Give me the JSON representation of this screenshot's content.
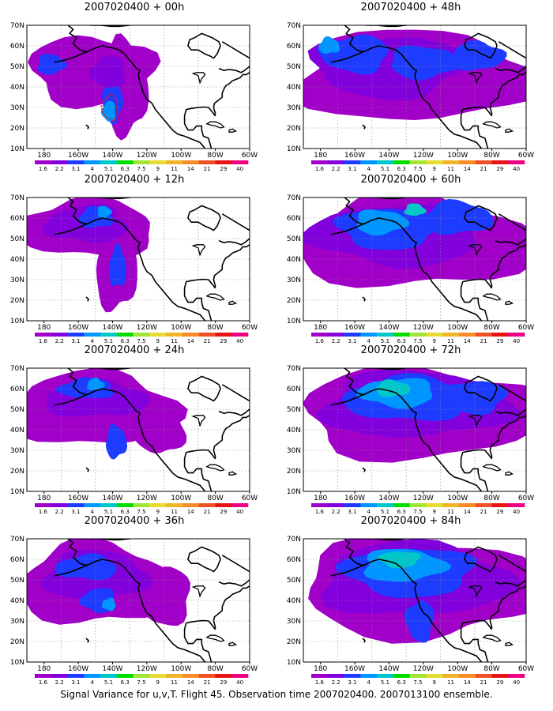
{
  "footer": "Signal Variance for u,v,T. Flight 45. Observation time 2007020400. 2007013100 ensemble.",
  "map_axes": {
    "lon_ticks": [
      "180",
      "160W",
      "140W",
      "120W",
      "100W",
      "80W",
      "60W"
    ],
    "lat_ticks": [
      "70N",
      "60N",
      "50N",
      "40N",
      "30N",
      "20N",
      "10N"
    ]
  },
  "colorbar": {
    "labels": [
      "1.6",
      "2.2",
      "3.1",
      "4",
      "5.1",
      "6.3",
      "7.5",
      "9",
      "11",
      "14",
      "21",
      "29",
      "40"
    ],
    "colors": [
      "#a000c8",
      "#8200dc",
      "#1e3cff",
      "#0096ff",
      "#00c8c8",
      "#00dc00",
      "#a0e632",
      "#e6dc32",
      "#f0b428",
      "#fa8c28",
      "#f05028",
      "#e61414",
      "#f00082"
    ]
  },
  "chart_data": [
    {
      "type": "heatmap",
      "title": "2007020400 + 00h",
      "lead_hours": 0,
      "max_class": 5,
      "notes": "target region marked near 30N 140W"
    },
    {
      "type": "heatmap",
      "title": "2007020400 + 48h",
      "lead_hours": 48,
      "max_class": 5
    },
    {
      "type": "heatmap",
      "title": "2007020400 + 12h",
      "lead_hours": 12,
      "max_class": 5
    },
    {
      "type": "heatmap",
      "title": "2007020400 + 60h",
      "lead_hours": 60,
      "max_class": 6
    },
    {
      "type": "heatmap",
      "title": "2007020400 + 24h",
      "lead_hours": 24,
      "max_class": 5
    },
    {
      "type": "heatmap",
      "title": "2007020400 + 72h",
      "lead_hours": 72,
      "max_class": 6
    },
    {
      "type": "heatmap",
      "title": "2007020400 + 36h",
      "lead_hours": 36,
      "max_class": 5
    },
    {
      "type": "heatmap",
      "title": "2007020400 + 84h",
      "lead_hours": 84,
      "max_class": 6
    }
  ]
}
